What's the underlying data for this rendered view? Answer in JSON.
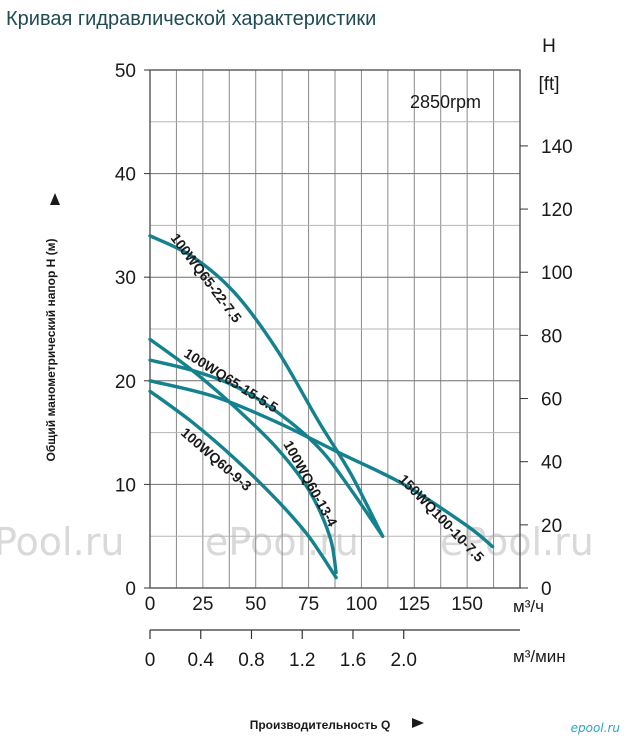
{
  "page": {
    "title": "Кривая гидравлической характеристики"
  },
  "watermarks": [
    "Pool.ru",
    "ePool.ru",
    "ePool.ru"
  ],
  "corner_logo": "epool.ru",
  "chart_data": {
    "type": "line",
    "title": "Кривая гидравлической характеристики",
    "speed_label": "2850rpm",
    "ylabel": "Общий манометрический напор H (м)",
    "ylim": [
      0,
      50
    ],
    "yticks": [
      0,
      10,
      20,
      30,
      40,
      50
    ],
    "y2label_top": "H",
    "y2label_unit": "[ft]",
    "y2lim": [
      0,
      164.04
    ],
    "y2ticks": [
      0,
      20,
      40,
      60,
      80,
      100,
      120,
      140
    ],
    "xlabel": "Производительность Q",
    "x_unit": "м³/ч",
    "xlim": [
      0,
      175
    ],
    "xticks": [
      0,
      25,
      50,
      75,
      100,
      125,
      150
    ],
    "x2_unit": "м³/мин",
    "x2ticks": [
      0,
      0.4,
      0.8,
      1.2,
      1.6,
      2.0
    ],
    "grid": true,
    "line_color": "#14828e",
    "series": [
      {
        "name": "100WQ65-22-7.5",
        "x": [
          0,
          20,
          40,
          60,
          80,
          95,
          110
        ],
        "y": [
          34,
          32,
          28.5,
          23,
          16,
          11,
          5
        ]
      },
      {
        "name": "100WQ65-15-5.5",
        "x": [
          0,
          20,
          40,
          60,
          80,
          95,
          110
        ],
        "y": [
          22,
          21,
          19.5,
          17,
          13.5,
          9.5,
          5
        ]
      },
      {
        "name": "100WQ60-13-4",
        "x": [
          0,
          20,
          40,
          60,
          75,
          85,
          88
        ],
        "y": [
          24,
          21,
          17.5,
          13.5,
          9.5,
          5,
          1.5
        ]
      },
      {
        "name": "100WQ60-9-3",
        "x": [
          0,
          20,
          40,
          60,
          75,
          88
        ],
        "y": [
          19,
          16,
          12.5,
          8.5,
          5,
          1
        ]
      },
      {
        "name": "150WQ100-10-7.5",
        "x": [
          0,
          30,
          60,
          90,
          120,
          150,
          162
        ],
        "y": [
          20,
          18.5,
          16,
          13,
          10,
          6,
          4
        ]
      }
    ]
  }
}
